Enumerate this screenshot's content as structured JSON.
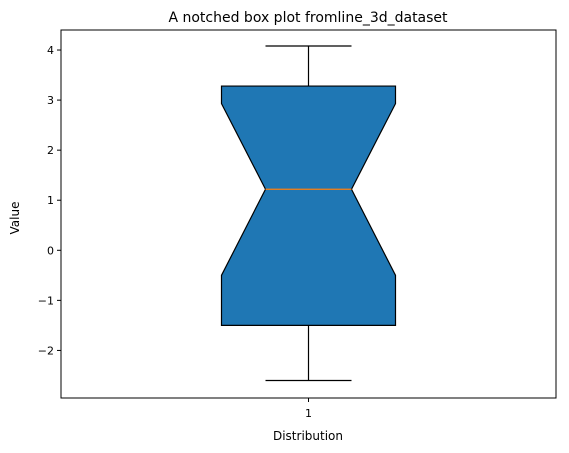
{
  "chart_data": {
    "type": "boxplot",
    "title": "A notched box plot fromline_3d_dataset",
    "xlabel": "Distribution",
    "ylabel": "Value",
    "ylim": [
      -2.95,
      4.4
    ],
    "yticks": [
      -2,
      -1,
      0,
      1,
      2,
      3,
      4
    ],
    "ytick_labels": [
      "−2",
      "−1",
      "0",
      "1",
      "2",
      "3",
      "4"
    ],
    "categories": [
      "1"
    ],
    "series": [
      {
        "whisker_low": -2.6,
        "q1": -1.5,
        "notch_low": -0.5,
        "median": 1.22,
        "notch_high": 2.93,
        "q3": 3.28,
        "whisker_high": 4.08
      }
    ],
    "colors": {
      "box_fill": "#1f77b4",
      "median_line": "#ff7f0e",
      "edge": "#000000"
    },
    "grid": false,
    "notched": true
  }
}
